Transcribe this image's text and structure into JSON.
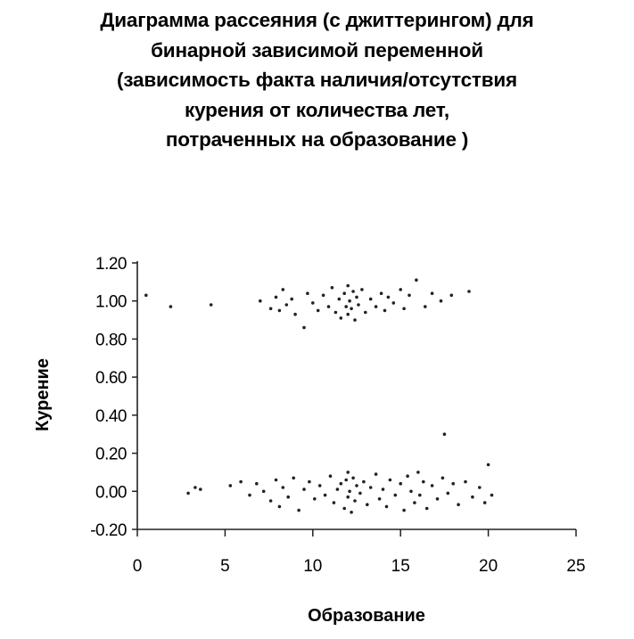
{
  "title_lines": [
    "Диаграмма рассеяния (с джиттерингом) для",
    "бинарной зависимой переменной",
    "(зависимость факта наличия/отсутствия",
    "курения от количества лет,",
    "потраченных на образование )"
  ],
  "chart_data": {
    "type": "scatter",
    "title": "Диаграмма рассеяния (с джиттерингом) для бинарной зависимой переменной (зависимость факта наличия/отсутствия курения от количества лет, потраченных на образование )",
    "xlabel": "Образование",
    "ylabel": "Курение",
    "xlim": [
      0,
      25
    ],
    "ylim": [
      -0.2,
      1.2
    ],
    "x_ticks": [
      "0",
      "5",
      "10",
      "15",
      "20",
      "25"
    ],
    "y_ticks": [
      "-0.20",
      "0.00",
      "0.20",
      "0.40",
      "0.60",
      "0.80",
      "1.00",
      "1.20"
    ],
    "grid": false,
    "legend": "none",
    "jitter": true,
    "marker_color": "#222222",
    "series": [
      {
        "points": [
          [
            0.5,
            1.03
          ],
          [
            1.9,
            0.97
          ],
          [
            4.2,
            0.98
          ],
          [
            7.0,
            1.0
          ],
          [
            7.6,
            0.96
          ],
          [
            7.9,
            1.02
          ],
          [
            8.1,
            0.95
          ],
          [
            8.3,
            1.06
          ],
          [
            8.5,
            0.98
          ],
          [
            8.8,
            1.01
          ],
          [
            9.0,
            0.93
          ],
          [
            9.5,
            0.86
          ],
          [
            9.7,
            1.04
          ],
          [
            10.0,
            0.99
          ],
          [
            10.3,
            0.95
          ],
          [
            10.6,
            1.03
          ],
          [
            10.9,
            0.97
          ],
          [
            11.1,
            1.07
          ],
          [
            11.3,
            0.94
          ],
          [
            11.5,
            1.01
          ],
          [
            11.6,
            0.91
          ],
          [
            11.8,
            1.04
          ],
          [
            11.9,
            0.97
          ],
          [
            12.0,
            1.08
          ],
          [
            12.0,
            0.93
          ],
          [
            12.1,
            1.0
          ],
          [
            12.2,
            0.96
          ],
          [
            12.3,
            1.05
          ],
          [
            12.4,
            0.9
          ],
          [
            12.5,
            1.02
          ],
          [
            12.6,
            0.98
          ],
          [
            12.8,
            1.06
          ],
          [
            13.0,
            0.94
          ],
          [
            13.3,
            1.01
          ],
          [
            13.6,
            0.97
          ],
          [
            13.9,
            1.04
          ],
          [
            14.1,
            0.95
          ],
          [
            14.3,
            1.02
          ],
          [
            14.6,
            0.99
          ],
          [
            15.0,
            1.06
          ],
          [
            15.2,
            0.96
          ],
          [
            15.5,
            1.03
          ],
          [
            15.9,
            1.11
          ],
          [
            16.4,
            0.97
          ],
          [
            16.8,
            1.04
          ],
          [
            17.3,
            1.0
          ],
          [
            17.9,
            1.03
          ],
          [
            18.9,
            1.05
          ]
        ]
      },
      {
        "points": [
          [
            2.9,
            -0.01
          ],
          [
            3.3,
            0.02
          ],
          [
            3.6,
            0.01
          ],
          [
            5.3,
            0.03
          ],
          [
            5.9,
            0.05
          ],
          [
            6.4,
            -0.02
          ],
          [
            6.8,
            0.04
          ],
          [
            7.2,
            0.0
          ],
          [
            7.6,
            -0.05
          ],
          [
            7.9,
            0.06
          ],
          [
            8.1,
            -0.08
          ],
          [
            8.3,
            0.02
          ],
          [
            8.6,
            -0.03
          ],
          [
            8.9,
            0.07
          ],
          [
            9.2,
            -0.1
          ],
          [
            9.5,
            0.01
          ],
          [
            9.8,
            0.05
          ],
          [
            10.1,
            -0.04
          ],
          [
            10.4,
            0.03
          ],
          [
            10.7,
            -0.02
          ],
          [
            11.0,
            0.08
          ],
          [
            11.2,
            -0.06
          ],
          [
            11.4,
            0.01
          ],
          [
            11.6,
            0.04
          ],
          [
            11.8,
            -0.09
          ],
          [
            11.9,
            0.06
          ],
          [
            12.0,
            -0.03
          ],
          [
            12.0,
            0.1
          ],
          [
            12.1,
            0.0
          ],
          [
            12.2,
            -0.11
          ],
          [
            12.3,
            0.07
          ],
          [
            12.4,
            -0.05
          ],
          [
            12.5,
            0.03
          ],
          [
            12.7,
            -0.01
          ],
          [
            12.9,
            0.05
          ],
          [
            13.1,
            -0.07
          ],
          [
            13.3,
            0.02
          ],
          [
            13.6,
            0.09
          ],
          [
            13.8,
            -0.04
          ],
          [
            14.0,
            0.01
          ],
          [
            14.2,
            -0.08
          ],
          [
            14.4,
            0.06
          ],
          [
            14.7,
            -0.02
          ],
          [
            15.0,
            0.04
          ],
          [
            15.2,
            -0.1
          ],
          [
            15.4,
            0.08
          ],
          [
            15.6,
            0.0
          ],
          [
            15.8,
            -0.06
          ],
          [
            16.0,
            0.1
          ],
          [
            16.1,
            -0.02
          ],
          [
            16.3,
            0.05
          ],
          [
            16.5,
            -0.09
          ],
          [
            16.8,
            0.03
          ],
          [
            17.1,
            -0.04
          ],
          [
            17.4,
            0.07
          ],
          [
            17.7,
            -0.01
          ],
          [
            18.0,
            0.04
          ],
          [
            18.3,
            -0.07
          ],
          [
            18.7,
            0.05
          ],
          [
            19.1,
            -0.03
          ],
          [
            19.5,
            0.02
          ],
          [
            19.8,
            -0.06
          ],
          [
            20.0,
            0.14
          ],
          [
            20.2,
            -0.02
          ],
          [
            17.5,
            0.3
          ]
        ]
      }
    ]
  }
}
